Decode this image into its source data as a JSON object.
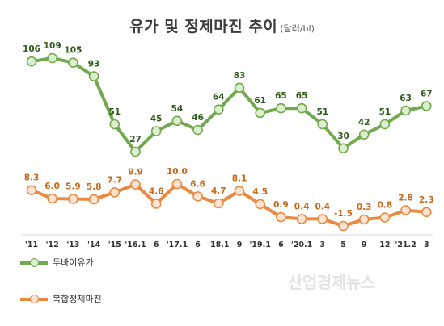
{
  "chart_data": {
    "type": "line",
    "title": "유가 및 정제마진 추이",
    "unit": "(달러/bl)",
    "categories": [
      "'11",
      "'12",
      "'13",
      "'14",
      "'15",
      "'16.1",
      "6",
      "'17.1",
      "6",
      "'18.1",
      "9",
      "'19.1",
      "6",
      "'20.1",
      "3",
      "5",
      "9",
      "12",
      "'21.2",
      "3"
    ],
    "series": [
      {
        "name": "두바이유가",
        "color": "#72a94e",
        "point_fill": "#dcefcf",
        "label_color": "#2f5a1b",
        "values": [
          106,
          109,
          105,
          93,
          51,
          27,
          45,
          54,
          46,
          64,
          83,
          61,
          65,
          65,
          51,
          30,
          42,
          51,
          63,
          67
        ],
        "labels": [
          "106",
          "109",
          "105",
          "93",
          "51",
          "27",
          "45",
          "54",
          "46",
          "64",
          "83",
          "61",
          "65",
          "65",
          "51",
          "30",
          "42",
          "51",
          "63",
          "67"
        ]
      },
      {
        "name": "복합정제마진",
        "color": "#e98a43",
        "point_fill": "#fde3d2",
        "label_color": "#c66a1c",
        "values": [
          8.3,
          6.0,
          5.9,
          5.8,
          7.7,
          9.9,
          4.6,
          10.0,
          6.6,
          4.7,
          8.1,
          4.5,
          0.9,
          0.4,
          0.4,
          -1.5,
          0.3,
          0.8,
          2.8,
          2.3
        ],
        "labels": [
          "8.3",
          "6.0",
          "5.9",
          "5.8",
          "7.7",
          "9.9",
          "4.6",
          "10.0",
          "6.6",
          "4.7",
          "8.1",
          "4.5",
          "0.9",
          "0.4",
          "0.4",
          "-1.5",
          "0.3",
          "0.8",
          "2.8",
          "2.3"
        ]
      }
    ],
    "grid": false,
    "legend_position": "bottom-left"
  },
  "watermark": "산업경제뉴스"
}
